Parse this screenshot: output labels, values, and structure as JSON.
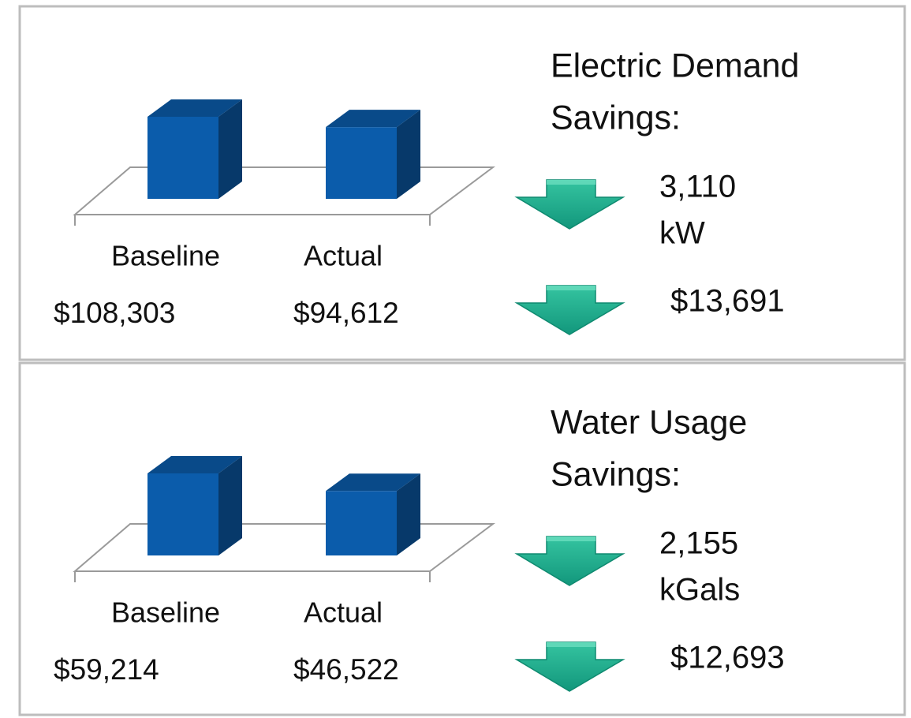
{
  "chart_data": [
    {
      "type": "bar",
      "title_lines": [
        "Electric Demand",
        "Savings:"
      ],
      "categories": [
        "Baseline",
        "Actual"
      ],
      "values": [
        108303,
        94612
      ],
      "value_labels": [
        "$108,303",
        "$94,612"
      ],
      "color": "#0b5cab",
      "savings": [
        [
          "3,110",
          "kW"
        ],
        [
          "$13,691"
        ]
      ]
    },
    {
      "type": "bar",
      "title_lines": [
        "Water Usage",
        "Savings:"
      ],
      "categories": [
        "Baseline",
        "Actual"
      ],
      "values": [
        59214,
        46522
      ],
      "value_labels": [
        "$59,214",
        "$46,522"
      ],
      "color": "#0b5cab",
      "savings": [
        [
          "2,155",
          "kGals"
        ],
        [
          "$12,693"
        ]
      ]
    }
  ]
}
